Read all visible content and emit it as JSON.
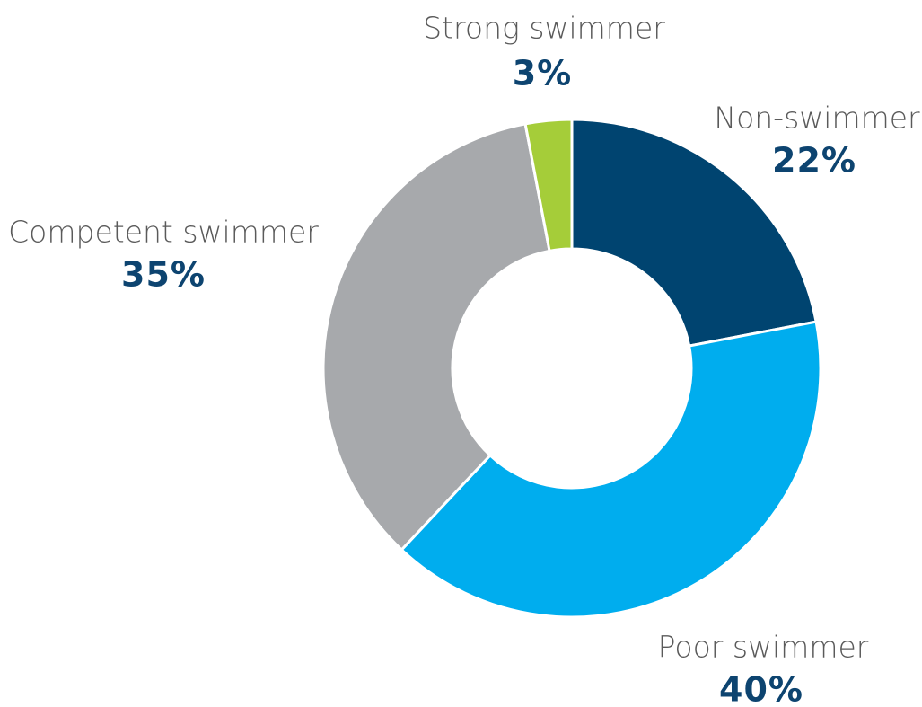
{
  "chart_data": {
    "type": "donut",
    "categories": [
      "Non-swimmer",
      "Poor swimmer",
      "Competent swimmer",
      "Strong swimmer"
    ],
    "values": [
      22,
      40,
      35,
      3
    ],
    "value_labels": [
      "22%",
      "40%",
      "35%",
      "3%"
    ],
    "colors": [
      "#004470",
      "#00adee",
      "#a7a9ac",
      "#a5cd39"
    ]
  }
}
